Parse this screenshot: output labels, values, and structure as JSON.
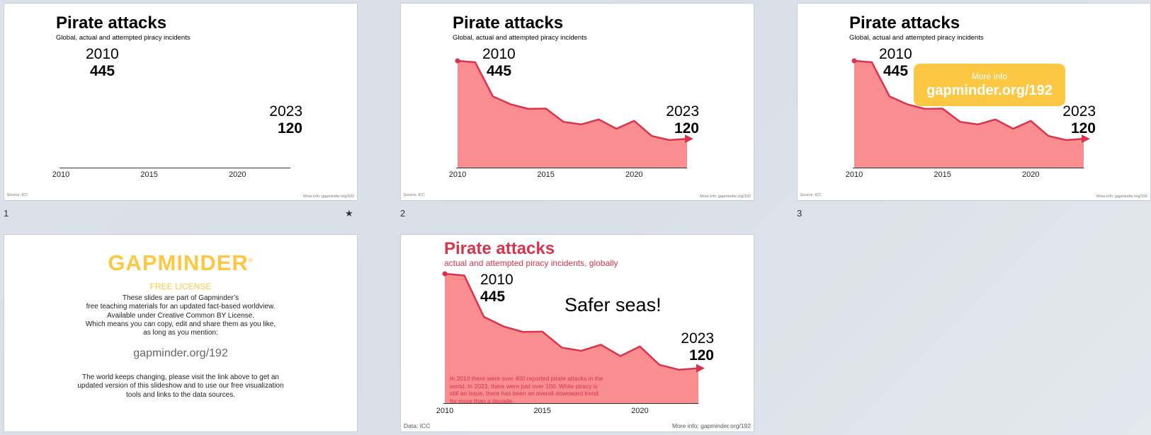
{
  "slides": [
    {
      "number": "1",
      "title": "Pirate attacks",
      "subtitle": "Global, actual and attempted piracy incidents",
      "start_year": "2010",
      "start_value": "445",
      "end_year": "2023",
      "end_value": "120",
      "source": "Source: ICC",
      "more_info": "More info: gapminder.org/192",
      "star": "★"
    },
    {
      "number": "2",
      "title": "Pirate attacks",
      "subtitle": "Global, actual and attempted piracy incidents",
      "start_year": "2010",
      "start_value": "445",
      "end_year": "2023",
      "end_value": "120",
      "source": "Source: ICC",
      "more_info": "More info: gapminder.org/192"
    },
    {
      "number": "3",
      "title": "Pirate attacks",
      "subtitle": "Global, actual and attempted piracy incidents",
      "start_year": "2010",
      "start_value": "445",
      "end_year": "2023",
      "end_value": "120",
      "source": "Source: ICC",
      "more_info": "More info: gapminder.org/192",
      "callout": {
        "line1": "More info",
        "line2": "gapminder.org/192"
      }
    },
    {
      "logo": "GAPMINDER",
      "license_heading": "FREE LICENSE",
      "license_lines": [
        "These slides are part of Gapminder’s",
        "free teaching materials for an updated fact-based worldview.",
        "Available under Creative Common BY License.",
        "Which means you can copy, edit and share them as you like,",
        "as long as you mention:"
      ],
      "link": "gapminder.org/192",
      "footer_lines": [
        "The world keeps changing, please visit the link above to get an",
        "updated version of this slideshow and to use our free visualization",
        "tools and links to the data sources."
      ]
    },
    {
      "title": "Pirate attacks",
      "subtitle": "actual and attempted piracy incidents, globally",
      "start_year": "2010",
      "start_value": "445",
      "end_year": "2023",
      "end_value": "120",
      "headline": "Safer seas!",
      "note": "In 2010 there were over 400 reported pirate attacks in the world.  In 2023, there were just over 100. While piracy is still an issue, there has been an overall downward trend for more than a decade.",
      "source": "Data: ICC",
      "more_info": "More info: gapminder.org/192"
    }
  ],
  "colors": {
    "accent_red": "#d9344b",
    "fill_red": "#f98d8f",
    "gapminder_yellow": "#fcc844"
  },
  "chart_data": {
    "type": "area",
    "title": "Pirate attacks",
    "x": [
      2010,
      2011,
      2012,
      2013,
      2014,
      2015,
      2016,
      2017,
      2018,
      2019,
      2020,
      2021,
      2022,
      2023
    ],
    "values": [
      445,
      439,
      297,
      264,
      245,
      246,
      191,
      180,
      201,
      162,
      195,
      132,
      115,
      120
    ],
    "xticks": [
      "2010",
      "2015",
      "2020"
    ],
    "ylim": [
      0,
      460
    ]
  }
}
